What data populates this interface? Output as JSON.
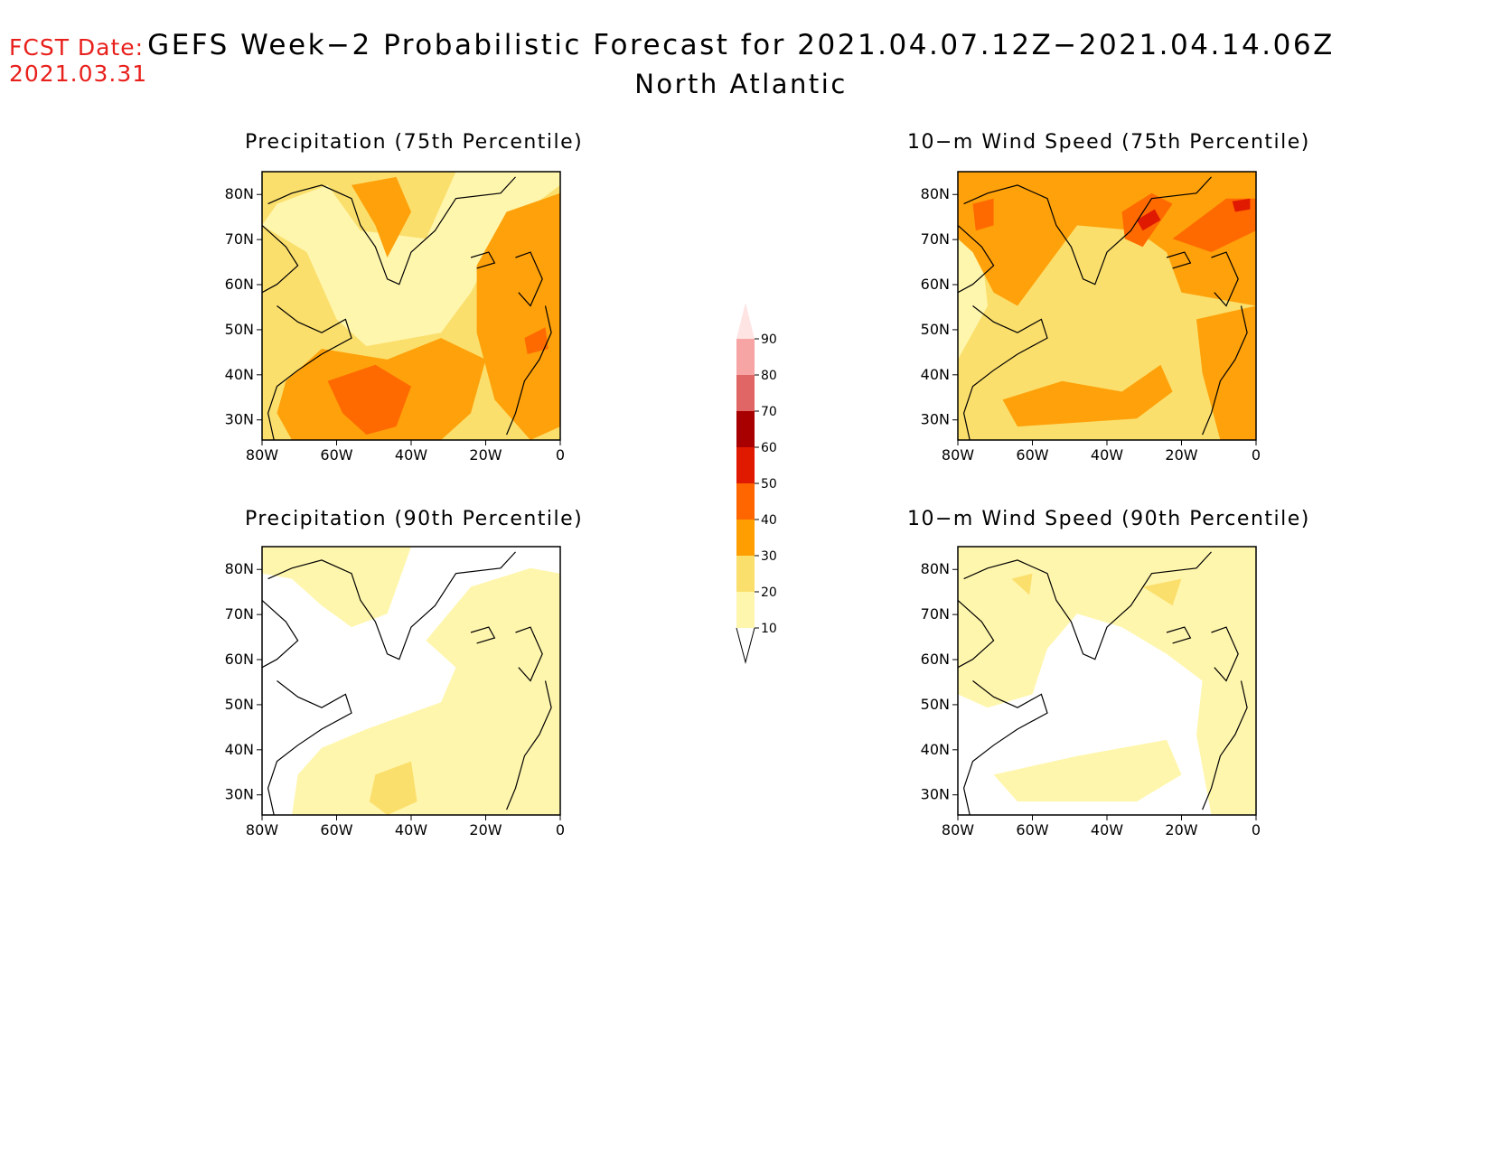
{
  "header": {
    "fcst_label": "FCST Date:",
    "fcst_date": "2021.03.31",
    "title": "GEFS Week−2 Probabilistic Forecast for 2021.04.07.12Z−2021.04.14.06Z",
    "subtitle": "North Atlantic"
  },
  "axes": {
    "lat_labels": [
      "80N",
      "70N",
      "60N",
      "50N",
      "40N",
      "30N"
    ],
    "lon_labels": [
      "80W",
      "60W",
      "40W",
      "20W",
      "0"
    ]
  },
  "panels": [
    {
      "title": "Precipitation (75th Percentile)",
      "variable": "precipitation",
      "percentile": 75
    },
    {
      "title": "10−m Wind Speed (75th Percentile)",
      "variable": "wind_speed_10m",
      "percentile": 75
    },
    {
      "title": "Precipitation (90th Percentile)",
      "variable": "precipitation",
      "percentile": 90
    },
    {
      "title": "10−m Wind Speed (90th Percentile)",
      "variable": "wind_speed_10m",
      "percentile": 90
    }
  ],
  "colorbar": {
    "labels": [
      "90",
      "80",
      "70",
      "60",
      "50",
      "40",
      "30",
      "20",
      "10"
    ],
    "colors": [
      "#f6a4a4",
      "#e06666",
      "#a80000",
      "#e01a00",
      "#ff6600",
      "#ff9e00",
      "#fbdf6c",
      "#fff6ad"
    ],
    "top_color": "#ffe4e4"
  },
  "map_colors": {
    "c10": "#fff6ad",
    "c20": "#fbdf6c",
    "c30": "#ffa10a",
    "c40": "#ff6a00",
    "c50": "#e01a00",
    "c60": "#a80000"
  }
}
